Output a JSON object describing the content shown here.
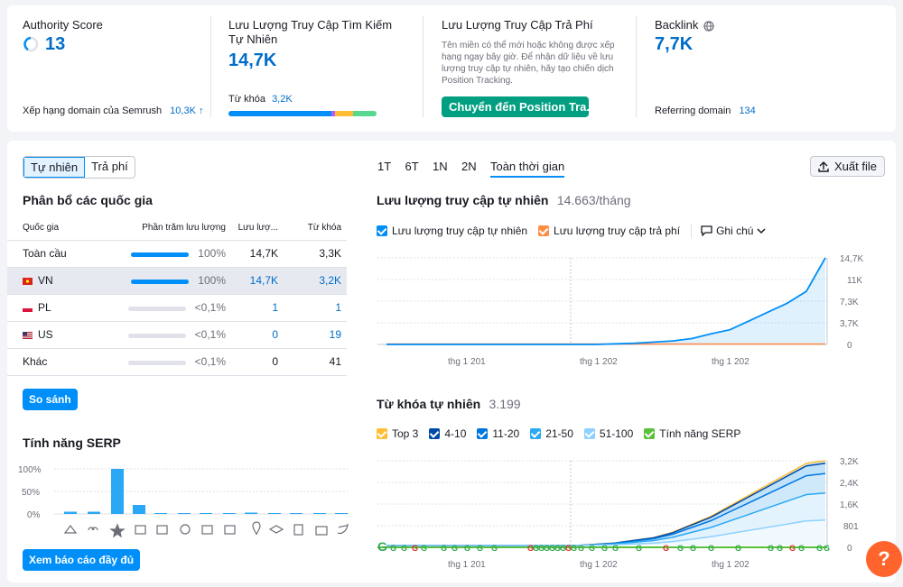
{
  "top": {
    "authority": {
      "label": "Authority Score",
      "value": "13",
      "footer_label": "Xếp hạng domain của Semrush",
      "footer_value": "10,3K ↑"
    },
    "organic": {
      "label": "Lưu Lượng Truy Cập Tìm Kiếm Tự Nhiên",
      "value": "14,7K",
      "kw_label": "Từ khóa",
      "kw_value": "3,2K"
    },
    "paid": {
      "label": "Lưu Lượng Truy Cập Trả Phí",
      "desc": "Tên miền có thể mới hoặc không được xếp hạng ngay bây giờ. Để nhận dữ liệu về lưu lượng truy cập tự nhiên, hãy tạo chiến dịch Position Tracking.",
      "button": "Chuyển đến Position Tra..."
    },
    "backlink": {
      "label": "Backlink",
      "value": "7,7K",
      "footer_label": "Referring domain",
      "footer_value": "134"
    }
  },
  "toggle": {
    "organic": "Tự nhiên",
    "paid": "Trả phí"
  },
  "countries": {
    "title": "Phân bổ các quốc gia",
    "headers": [
      "Quốc gia",
      "Phần trăm lưu lượng",
      "Lưu lượ...",
      "Từ khóa"
    ],
    "rows": [
      {
        "name": "Toàn cầu",
        "pct": "100%",
        "traffic": "14,7K",
        "kw": "3,3K",
        "fill": 1.0
      },
      {
        "name": "VN",
        "pct": "100%",
        "traffic": "14,7K",
        "kw": "3,2K",
        "fill": 1.0
      },
      {
        "name": "PL",
        "pct": "<0,1%",
        "traffic": "1",
        "kw": "1",
        "fill": 0
      },
      {
        "name": "US",
        "pct": "<0,1%",
        "traffic": "0",
        "kw": "19",
        "fill": 0
      },
      {
        "name": "Khác",
        "pct": "<0,1%",
        "traffic": "0",
        "kw": "41",
        "fill": 0
      }
    ],
    "compare_button": "So sánh"
  },
  "serp": {
    "title": "Tính năng SERP",
    "y_labels": [
      "100%",
      "50%",
      "0%"
    ],
    "full_report_button": "Xem báo cáo đầy đủ"
  },
  "range": [
    "1T",
    "6T",
    "1N",
    "2N",
    "Toàn thời gian"
  ],
  "export_button": "Xuất file",
  "traffic_chart": {
    "title": "Lưu lượng truy cập tự nhiên",
    "subtitle": "14.663/tháng",
    "legend_organic": "Lưu lượng truy cập tự nhiên",
    "legend_paid": "Lưu lượng truy cập trả phí",
    "notes": "Ghi chú",
    "y_ticks": [
      "14,7K",
      "11K",
      "7,3K",
      "3,7K",
      "0"
    ],
    "x_ticks": [
      "thg 1 201",
      "thg 1 202",
      "thg 1 202"
    ]
  },
  "kw_chart": {
    "title": "Từ khóa tự nhiên",
    "subtitle": "3.199",
    "legend": [
      "Top 3",
      "4-10",
      "11-20",
      "21-50",
      "51-100",
      "Tính năng SERP"
    ],
    "y_ticks": [
      "3,2K",
      "2,4K",
      "1,6K",
      "801",
      "0"
    ],
    "x_ticks": [
      "thg 1 201",
      "thg 1 202",
      "thg 1 202"
    ]
  },
  "chart_data": [
    {
      "type": "line",
      "title": "Lưu lượng truy cập tự nhiên",
      "series": [
        {
          "name": "Lưu lượng truy cập tự nhiên",
          "values": [
            0,
            0,
            0,
            0,
            0,
            0,
            0,
            0,
            0,
            0,
            0,
            0,
            100,
            200,
            400,
            600,
            1000,
            1800,
            2500,
            4000,
            5500,
            7000,
            9000,
            14700
          ]
        },
        {
          "name": "Lưu lượng truy cập trả phí",
          "values": [
            0,
            0,
            0,
            0,
            0,
            0,
            0,
            0,
            0,
            0,
            0,
            0,
            0,
            0,
            0,
            0,
            0,
            0,
            0,
            0,
            0,
            0,
            0,
            0
          ]
        }
      ],
      "ylim": [
        0,
        14700
      ]
    },
    {
      "type": "area",
      "title": "Từ khóa tự nhiên",
      "series": [
        {
          "name": "Top 3",
          "values": [
            0,
            0,
            0,
            0,
            0,
            0,
            0,
            0,
            0,
            0,
            0,
            50,
            100,
            200,
            300,
            500,
            800,
            1100,
            1500,
            1900,
            2300,
            2700,
            3100,
            3199
          ]
        }
      ],
      "ylim": [
        0,
        3200
      ]
    },
    {
      "type": "bar",
      "title": "Tính năng SERP",
      "values": [
        5,
        5,
        100,
        20,
        0,
        0,
        0,
        0,
        3,
        0,
        0,
        0,
        0,
        0
      ],
      "ylim": [
        0,
        100
      ]
    }
  ]
}
